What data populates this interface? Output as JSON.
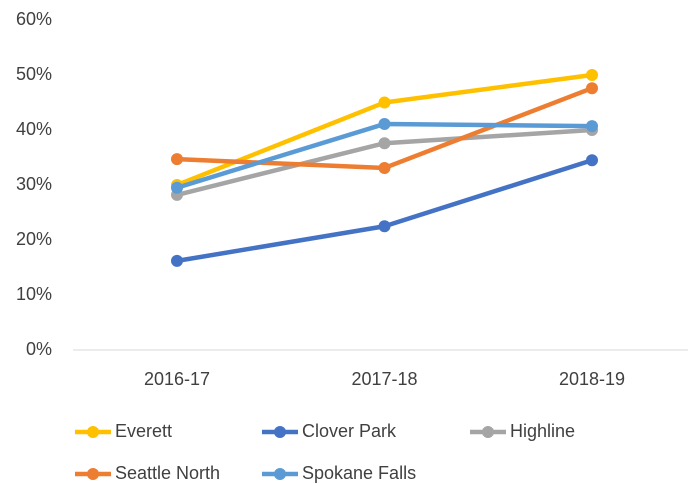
{
  "chart_data": {
    "type": "line",
    "categories": [
      "2016-17",
      "2017-18",
      "2018-19"
    ],
    "series": [
      {
        "name": "Everett",
        "color": "#FFC000",
        "values": [
          30,
          45,
          50
        ]
      },
      {
        "name": "Clover Park",
        "color": "#4472C4",
        "values": [
          16.2,
          22.5,
          34.5
        ]
      },
      {
        "name": "Highline",
        "color": "#A5A5A5",
        "values": [
          28.2,
          37.6,
          40
        ]
      },
      {
        "name": "Seattle North",
        "color": "#ED7D31",
        "values": [
          34.7,
          33.1,
          47.6
        ]
      },
      {
        "name": "Spokane Falls",
        "color": "#5B9BD5",
        "values": [
          29.5,
          41.1,
          40.7
        ]
      }
    ],
    "ylim": [
      0,
      60
    ],
    "yticks": [
      {
        "value": 0,
        "label": "0%"
      },
      {
        "value": 10,
        "label": "10%"
      },
      {
        "value": 20,
        "label": "20%"
      },
      {
        "value": 30,
        "label": "30%"
      },
      {
        "value": 40,
        "label": "40%"
      },
      {
        "value": 50,
        "label": "50%"
      },
      {
        "value": 60,
        "label": "60%"
      }
    ],
    "grid": false,
    "legend": "bottom"
  }
}
